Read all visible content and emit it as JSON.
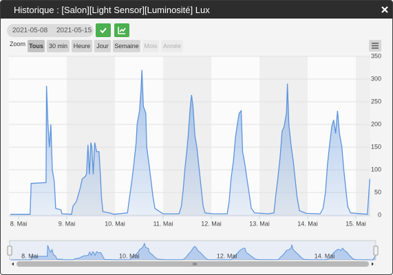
{
  "header": {
    "title": "Historique : [Salon][Light Sensor][Luminosité] Lux"
  },
  "filters": {
    "start": "2021-05-08",
    "end": "2021-05-15"
  },
  "zoom": {
    "label": "Zoom",
    "buttons": [
      "Tous",
      "30 min",
      "Heure",
      "Jour",
      "Semaine",
      "Mois",
      "Année"
    ]
  },
  "chart_data": {
    "type": "area",
    "color": "#5b93dd",
    "grid": true,
    "xlim": [
      7.8,
      15.3
    ],
    "ylim": [
      0,
      350
    ],
    "yticks": [
      0,
      50,
      100,
      150,
      200,
      250,
      300,
      350
    ],
    "xticks": [
      {
        "value": 8,
        "label": "8. Mai"
      },
      {
        "value": 9,
        "label": "9. Mai"
      },
      {
        "value": 10,
        "label": "10. Mai"
      },
      {
        "value": 11,
        "label": "11. Mai"
      },
      {
        "value": 12,
        "label": "12. Mai"
      },
      {
        "value": 13,
        "label": "13. Mai"
      },
      {
        "value": 14,
        "label": "14. Mai"
      },
      {
        "value": 15,
        "label": "15. Mai"
      }
    ],
    "x": [
      7.83,
      8.24,
      8.26,
      8.57,
      8.58,
      8.61,
      8.64,
      8.67,
      8.7,
      8.74,
      8.77,
      8.88,
      8.9,
      9.1,
      9.13,
      9.2,
      9.28,
      9.32,
      9.38,
      9.41,
      9.44,
      9.47,
      9.5,
      9.52,
      9.55,
      9.58,
      9.62,
      9.67,
      9.7,
      9.72,
      9.75,
      9.89,
      9.98,
      10.26,
      10.31,
      10.35,
      10.39,
      10.44,
      10.46,
      10.51,
      10.54,
      10.56,
      10.59,
      10.64,
      10.66,
      10.71,
      10.75,
      10.79,
      10.83,
      10.9,
      11.0,
      11.33,
      11.38,
      11.42,
      11.45,
      11.49,
      11.52,
      11.56,
      11.59,
      11.62,
      11.66,
      11.7,
      11.75,
      11.79,
      11.83,
      11.87,
      12.04,
      12.33,
      12.37,
      12.41,
      12.46,
      12.5,
      12.54,
      12.58,
      12.62,
      12.65,
      12.7,
      12.74,
      12.79,
      12.83,
      12.9,
      13.19,
      13.3,
      13.34,
      13.38,
      13.43,
      13.47,
      13.51,
      13.56,
      13.58,
      13.61,
      13.66,
      13.7,
      13.74,
      13.78,
      13.83,
      13.97,
      14.26,
      14.32,
      14.37,
      14.41,
      14.45,
      14.5,
      14.54,
      14.58,
      14.62,
      14.66,
      14.71,
      14.75,
      14.79,
      14.83,
      14.89,
      15.24,
      15.29
    ],
    "values": [
      2,
      2,
      70,
      72,
      285,
      200,
      150,
      200,
      100,
      75,
      15,
      12,
      3,
      2,
      20,
      30,
      60,
      80,
      85,
      90,
      155,
      90,
      160,
      150,
      90,
      160,
      140,
      140,
      85,
      40,
      8,
      5,
      2,
      5,
      45,
      75,
      110,
      160,
      200,
      230,
      275,
      320,
      240,
      225,
      150,
      110,
      75,
      40,
      15,
      10,
      3,
      3,
      20,
      60,
      100,
      140,
      175,
      235,
      265,
      240,
      175,
      150,
      100,
      60,
      20,
      5,
      3,
      3,
      30,
      80,
      120,
      170,
      200,
      225,
      230,
      140,
      110,
      80,
      45,
      15,
      5,
      3,
      5,
      45,
      80,
      130,
      185,
      195,
      225,
      290,
      200,
      150,
      120,
      80,
      40,
      10,
      4,
      3,
      15,
      50,
      110,
      150,
      195,
      210,
      180,
      230,
      180,
      150,
      100,
      60,
      20,
      5,
      2,
      80
    ]
  }
}
